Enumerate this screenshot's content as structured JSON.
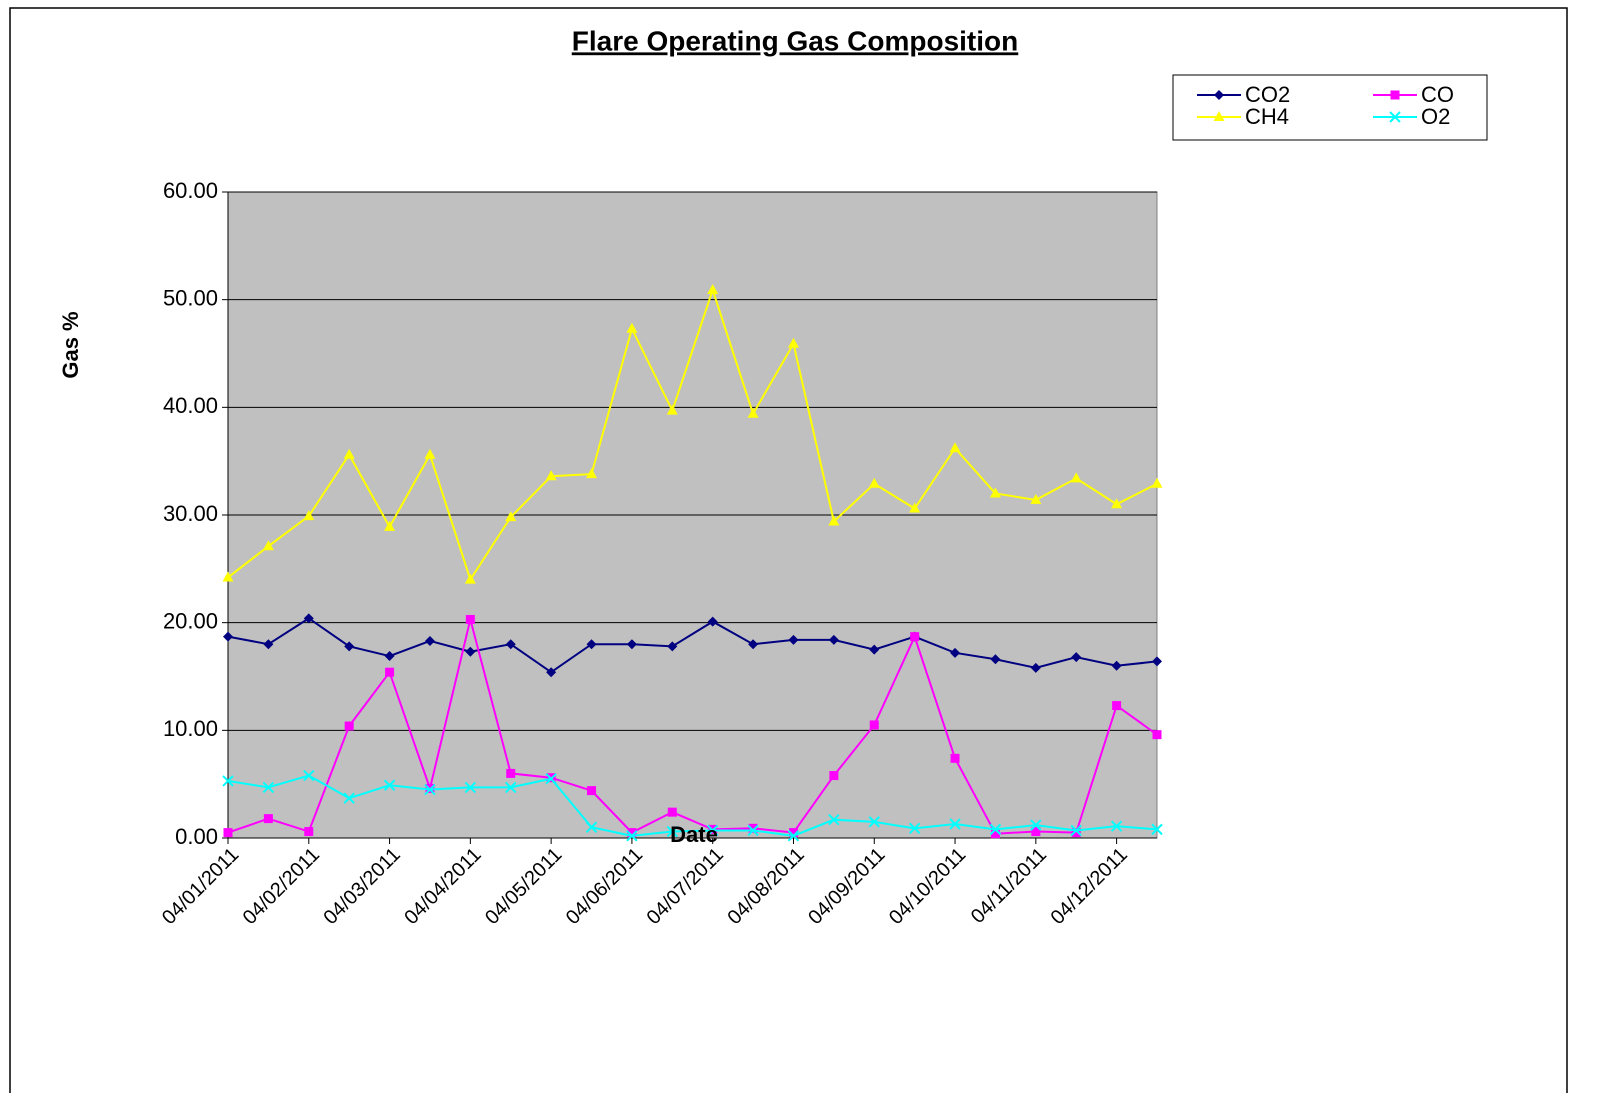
{
  "chart_data": {
    "type": "line",
    "title": "Flare Operating Gas Composition",
    "xlabel": "Date",
    "ylabel": "Gas %",
    "categories": [
      "04/01/2011",
      null,
      "04/02/2011",
      null,
      "04/03/2011",
      null,
      "04/04/2011",
      null,
      "04/05/2011",
      null,
      "04/06/2011",
      null,
      "04/07/2011",
      null,
      "04/08/2011",
      null,
      "04/09/2011",
      null,
      "04/10/2011",
      null,
      "04/11/2011",
      null,
      "04/12/2011",
      null
    ],
    "series": [
      {
        "name": "CO2",
        "color": "#000080",
        "marker": "diamond",
        "values": [
          18.7,
          18.0,
          20.4,
          17.8,
          16.9,
          18.3,
          17.3,
          18.0,
          15.4,
          18.0,
          18.0,
          17.8,
          20.1,
          18.0,
          18.4,
          18.4,
          17.5,
          18.7,
          17.2,
          16.6,
          15.8,
          16.8,
          16.0,
          16.4
        ]
      },
      {
        "name": "CO",
        "color": "#ff00ff",
        "marker": "square",
        "values": [
          0.5,
          1.8,
          0.6,
          10.4,
          15.4,
          4.6,
          20.3,
          6.0,
          5.6,
          4.4,
          0.5,
          2.4,
          0.8,
          0.9,
          0.5,
          5.8,
          10.5,
          18.7,
          7.4,
          0.4,
          0.6,
          0.5,
          12.3,
          9.6
        ]
      },
      {
        "name": "CH4",
        "color": "#ffff00",
        "marker": "triangle",
        "values": [
          24.2,
          27.1,
          29.9,
          35.6,
          28.9,
          35.6,
          24.0,
          29.8,
          33.6,
          33.8,
          47.3,
          39.7,
          50.9,
          39.4,
          45.9,
          29.4,
          32.9,
          30.6,
          36.2,
          32.0,
          31.4,
          33.4,
          31.0,
          32.9
        ]
      },
      {
        "name": "O2",
        "color": "#00ffff",
        "marker": "x",
        "values": [
          5.3,
          4.7,
          5.8,
          3.7,
          4.9,
          4.5,
          4.7,
          4.7,
          5.5,
          1.0,
          0.2,
          0.6,
          0.7,
          0.7,
          0.2,
          1.7,
          1.5,
          0.9,
          1.3,
          0.8,
          1.2,
          0.7,
          1.1,
          0.8
        ]
      }
    ],
    "ylim": [
      0,
      60
    ],
    "yticks": [
      {
        "value": 0,
        "label": "0.00"
      },
      {
        "value": 10,
        "label": "10.00"
      },
      {
        "value": 20,
        "label": "20.00"
      },
      {
        "value": 30,
        "label": "30.00"
      },
      {
        "value": 40,
        "label": "40.00"
      },
      {
        "value": 50,
        "label": "50.00"
      },
      {
        "value": 60,
        "label": "60.00"
      }
    ],
    "grid": true,
    "plot_background": "#c0c0c0"
  }
}
